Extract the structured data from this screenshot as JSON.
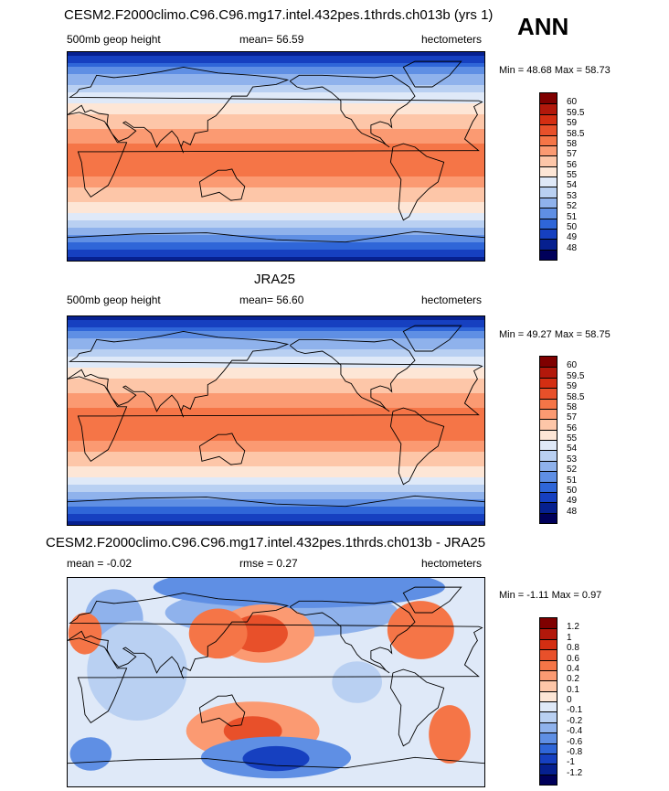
{
  "chart_data": [
    {
      "type": "heatmap",
      "title": "CESM2.F2000climo.C96.C96.mg17.intel.432pes.1thrds.ch013b (yrs 1)",
      "variable": "500mb geop height",
      "mean_text": "mean=  56.59",
      "units": "hectometers",
      "minmax_text": "Min =  48.68 Max =  58.73",
      "min": 48.68,
      "max": 58.73,
      "colorbar_labels": [
        "60",
        "59.5",
        "59",
        "58.5",
        "58",
        "57",
        "56",
        "55",
        "54",
        "53",
        "52",
        "51",
        "50",
        "49",
        "48"
      ],
      "colors": [
        "#7f0000",
        "#b2180b",
        "#d42e12",
        "#e8502a",
        "#f57547",
        "#fb9a72",
        "#fdc6a8",
        "#fde6d6",
        "#dfe9f8",
        "#b9d0f2",
        "#8fb2ec",
        "#5f8fe4",
        "#2f66d8",
        "#1640c0",
        "#06208f",
        "#00005a"
      ]
    },
    {
      "type": "heatmap",
      "title": "JRA25",
      "variable": "500mb geop height",
      "mean_text": "mean=  56.60",
      "units": "hectometers",
      "minmax_text": "Min =  49.27 Max =  58.75",
      "min": 49.27,
      "max": 58.75,
      "colorbar_labels": [
        "60",
        "59.5",
        "59",
        "58.5",
        "58",
        "57",
        "56",
        "55",
        "54",
        "53",
        "52",
        "51",
        "50",
        "49",
        "48"
      ],
      "colors": [
        "#7f0000",
        "#b2180b",
        "#d42e12",
        "#e8502a",
        "#f57547",
        "#fb9a72",
        "#fdc6a8",
        "#fde6d6",
        "#dfe9f8",
        "#b9d0f2",
        "#8fb2ec",
        "#5f8fe4",
        "#2f66d8",
        "#1640c0",
        "#06208f",
        "#00005a"
      ]
    },
    {
      "type": "heatmap",
      "title": "CESM2.F2000climo.C96.C96.mg17.intel.432pes.1thrds.ch013b - JRA25",
      "mean_text": "mean =  -0.02",
      "rmse_text": "rmse =   0.27",
      "units": "hectometers",
      "minmax_text": "Min =  -1.11 Max =   0.97",
      "min": -1.11,
      "max": 0.97,
      "colorbar_labels": [
        "1.2",
        "1",
        "0.8",
        "0.6",
        "0.4",
        "0.2",
        "0.1",
        "0",
        "-0.1",
        "-0.2",
        "-0.4",
        "-0.6",
        "-0.8",
        "-1",
        "-1.2"
      ],
      "colors": [
        "#7f0000",
        "#b2180b",
        "#d42e12",
        "#e8502a",
        "#f57547",
        "#fb9a72",
        "#fdc6a8",
        "#fde6d6",
        "#dfe9f8",
        "#b9d0f2",
        "#8fb2ec",
        "#5f8fe4",
        "#2f66d8",
        "#1640c0",
        "#06208f",
        "#00005a"
      ]
    }
  ],
  "season_label": "ANN"
}
